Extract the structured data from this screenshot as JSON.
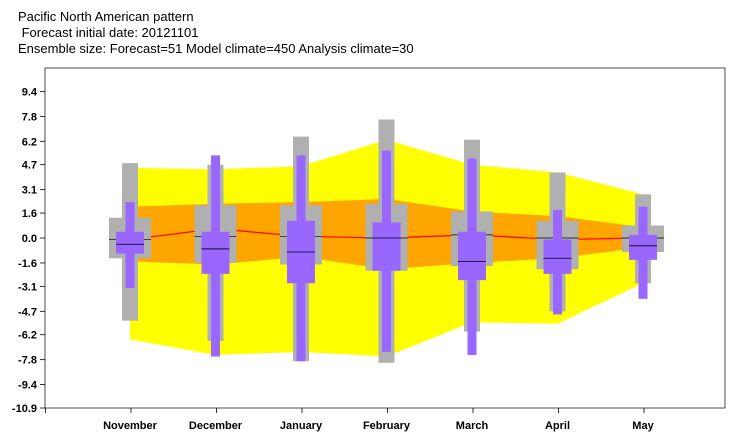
{
  "title_lines": [
    "Pacific North American pattern",
    " Forecast initial date: 20121101",
    "Ensemble size: Forecast=51 Model climate=450 Analysis climate=30"
  ],
  "chart_data": {
    "type": "box-plume",
    "categories": [
      "November",
      "December",
      "January",
      "February",
      "March",
      "April",
      "May"
    ],
    "y_ticks": [
      "9.4",
      "7.8",
      "6.2",
      "4.7",
      "3.1",
      "1.6",
      "0.0",
      "-1.6",
      "-3.1",
      "-4.7",
      "-6.2",
      "-7.8",
      "-9.4",
      "-10.9"
    ],
    "ylim": [
      -10.9,
      10.9
    ],
    "grid": false,
    "colors": {
      "plume_outer": "#ffff00",
      "plume_inner": "#ffa500",
      "median_line": "#ff0000",
      "model_climate": "#b0b0b0",
      "forecast": "#9966ff",
      "tick_text": "#000000"
    },
    "plume_outer": {
      "upper": [
        4.5,
        4.4,
        4.6,
        6.3,
        4.7,
        4.2,
        2.8
      ],
      "lower": [
        -6.5,
        -7.5,
        -7.3,
        -7.6,
        -5.4,
        -5.5,
        -2.9
      ]
    },
    "plume_inner": {
      "upper": [
        2.0,
        2.2,
        2.3,
        2.5,
        1.7,
        1.4,
        0.7
      ],
      "lower": [
        -1.5,
        -1.7,
        -1.2,
        -2.0,
        -1.6,
        -1.3,
        -0.6
      ]
    },
    "median_line": [
      -0.1,
      0.6,
      0.1,
      0.0,
      0.2,
      -0.1,
      0.0
    ],
    "model_climate": {
      "min": [
        -5.3,
        -6.6,
        -7.9,
        -8.0,
        -6.0,
        -4.7,
        -2.9
      ],
      "q1": [
        -1.3,
        -1.6,
        -1.7,
        -2.1,
        -1.8,
        -2.0,
        -0.9
      ],
      "q3": [
        1.3,
        2.1,
        2.1,
        2.2,
        1.7,
        1.1,
        0.8
      ],
      "max": [
        4.8,
        4.7,
        6.5,
        7.6,
        6.3,
        4.2,
        2.8
      ],
      "median": [
        -0.1,
        0.1,
        0.1,
        0.0,
        0.2,
        0.0,
        0.0
      ]
    },
    "forecast": {
      "min": [
        -3.2,
        -7.6,
        -7.9,
        -7.3,
        -7.5,
        -4.9,
        -3.9
      ],
      "q1": [
        -1.0,
        -2.3,
        -2.9,
        -2.1,
        -2.7,
        -2.3,
        -1.4
      ],
      "q3": [
        0.4,
        0.4,
        1.1,
        1.0,
        0.4,
        -0.1,
        0.2
      ],
      "max": [
        2.3,
        5.3,
        5.3,
        5.6,
        5.1,
        1.8,
        2.0
      ],
      "median": [
        -0.4,
        -0.7,
        -0.9,
        0.0,
        -1.5,
        -1.3,
        -0.5
      ]
    }
  }
}
